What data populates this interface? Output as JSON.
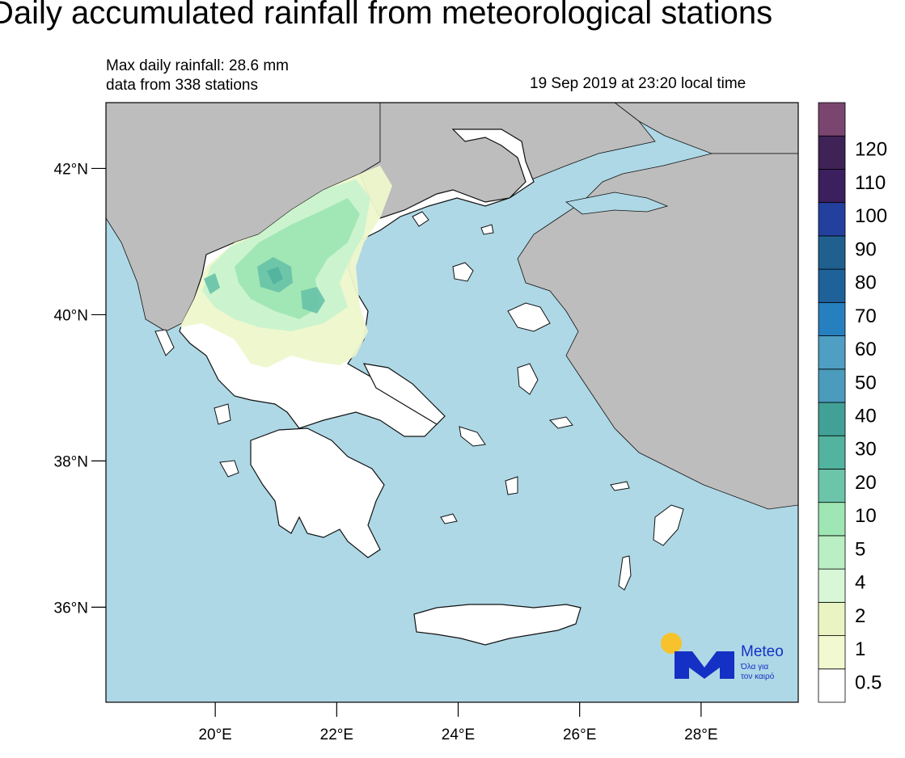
{
  "title": "Daily accumulated rainfall from meteorological stations",
  "info": {
    "max_rain": "Max daily rainfall: 28.6 mm",
    "stations": "data from 338 stations",
    "datetime": "19 Sep 2019 at 23:20 local time"
  },
  "axes": {
    "lat_ticks": [
      {
        "value": 42,
        "label": "42°N"
      },
      {
        "value": 40,
        "label": "40°N"
      },
      {
        "value": 38,
        "label": "38°N"
      },
      {
        "value": 36,
        "label": "36°N"
      }
    ],
    "lon_ticks": [
      {
        "value": 20,
        "label": "20°E"
      },
      {
        "value": 22,
        "label": "22°E"
      },
      {
        "value": 24,
        "label": "24°E"
      },
      {
        "value": 26,
        "label": "26°E"
      },
      {
        "value": 28,
        "label": "28°E"
      }
    ]
  },
  "colorbar": {
    "unit": "",
    "bins": [
      {
        "label": "0.5",
        "color": "#ffffff"
      },
      {
        "label": "1",
        "color": "#f2f8cf"
      },
      {
        "label": "2",
        "color": "#e9f4c2"
      },
      {
        "label": "4",
        "color": "#d8f7d6"
      },
      {
        "label": "5",
        "color": "#b9efc3"
      },
      {
        "label": "10",
        "color": "#9ee6b3"
      },
      {
        "label": "20",
        "color": "#6cc4a9"
      },
      {
        "label": "30",
        "color": "#52b39f"
      },
      {
        "label": "40",
        "color": "#42a197"
      },
      {
        "label": "50",
        "color": "#4a9bbc"
      },
      {
        "label": "60",
        "color": "#4f9ec3"
      },
      {
        "label": "70",
        "color": "#2680c0"
      },
      {
        "label": "80",
        "color": "#1f629a"
      },
      {
        "label": "90",
        "color": "#20608f"
      },
      {
        "label": "100",
        "color": "#23409f"
      },
      {
        "label": "110",
        "color": "#3b1f5f"
      },
      {
        "label": "120",
        "color": "#3f2256"
      },
      {
        "label": "",
        "color": "#7a4670"
      }
    ]
  },
  "colors": {
    "sea": "#aed8e6",
    "neighbor_land": "#bdbdbd",
    "greece_land": "#ffffff",
    "coast": "#111111"
  },
  "logo": {
    "name": "Meteo",
    "tagline_1": "Όλα για",
    "tagline_2": "τον καιρό",
    "color": "#1530c4",
    "sun_color": "#f7c22b"
  },
  "chart_data": {
    "type": "heatmap",
    "title": "Daily accumulated rainfall from meteorological stations",
    "xlim": [
      18.2,
      29.6
    ],
    "ylim": [
      34.7,
      42.9
    ],
    "x_ticks": [
      20,
      22,
      24,
      26,
      28
    ],
    "y_ticks": [
      36,
      38,
      40,
      42
    ],
    "max_value_mm": 28.6,
    "station_count": 338
  }
}
